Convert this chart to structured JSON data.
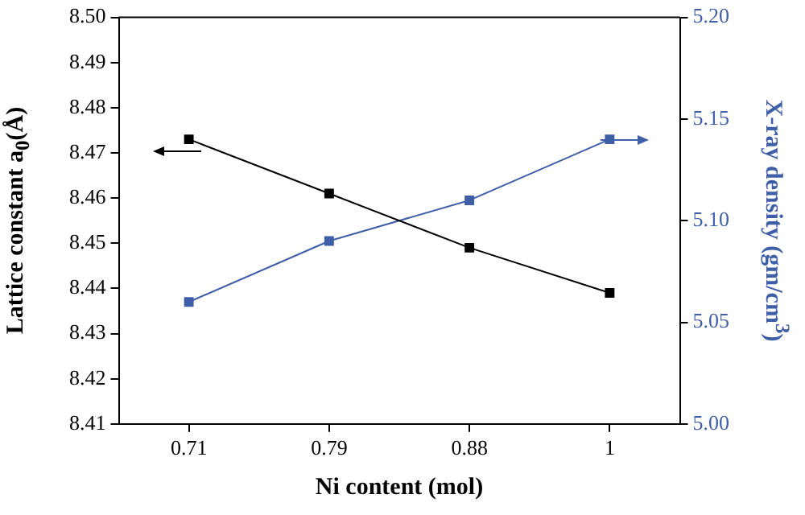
{
  "chart_data": {
    "type": "line",
    "xlabel": "Ni content (mol)",
    "ylabel": "Lattice constant  a$_{0}$(Å)",
    "y2label": "X-ray density (gm/cm$^{3}$)",
    "categories": [
      "0.71",
      "0.79",
      "0.88",
      "1"
    ],
    "series": [
      {
        "color": "#000000",
        "values": [
          8.473,
          8.461,
          8.449,
          8.439
        ]
      },
      {
        "color": "#3f5ea8",
        "values": [
          5.06,
          5.09,
          5.11,
          5.14
        ],
        "axis": "y2"
      }
    ],
    "ylim": [
      8.41,
      8.5
    ],
    "yticks": [
      8.41,
      8.42,
      8.43,
      8.44,
      8.45,
      8.46,
      8.47,
      8.48,
      8.49,
      {
        "value": 8.5,
        "label": "8.50"
      }
    ],
    "y2lim": [
      5.0,
      5.2
    ],
    "y2ticks": [
      {
        "value": 5.0,
        "label": "5.00"
      },
      {
        "value": 5.05,
        "label": "5.05"
      },
      {
        "value": 5.1,
        "label": "5.10"
      },
      {
        "value": 5.15,
        "label": "5.15"
      },
      {
        "value": 5.2,
        "label": "5.20"
      }
    ],
    "marker": "square",
    "line_style": "solid",
    "grid": false,
    "legend": false
  }
}
